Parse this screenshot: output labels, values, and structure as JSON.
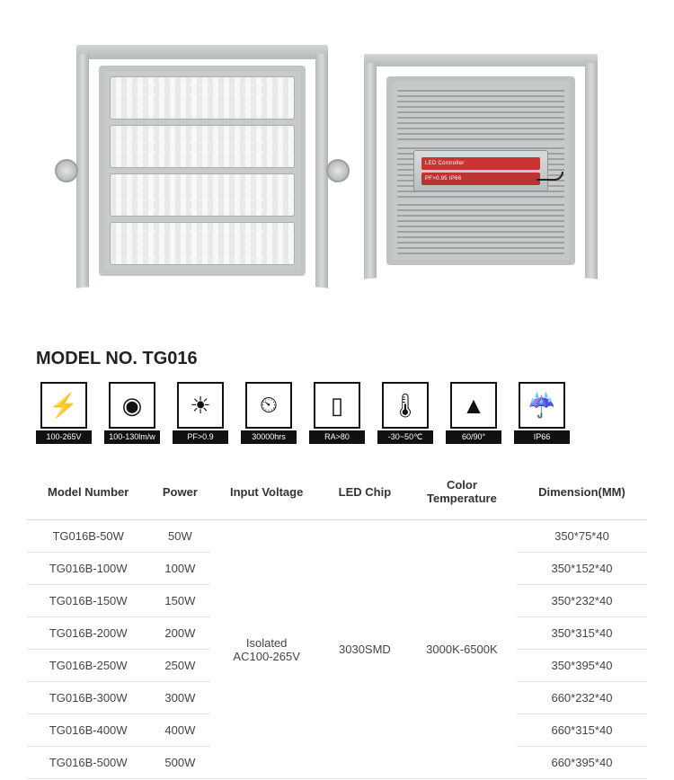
{
  "model_title": "MODEL NO. TG016",
  "driver_label_1": "LED Controller",
  "driver_label_2": "PF>0.95   IP66",
  "spec_icons": [
    {
      "symbol": "⚡",
      "caption": "100-265V"
    },
    {
      "symbol": "◉",
      "caption": "100-130lm/w"
    },
    {
      "symbol": "☀",
      "caption": "PF>0.9"
    },
    {
      "symbol": "⏲",
      "caption": "30000hrs"
    },
    {
      "symbol": "▯",
      "caption": "RA>80"
    },
    {
      "symbol": "🌡",
      "caption": "-30~50℃"
    },
    {
      "symbol": "▲",
      "caption": "60/90°"
    },
    {
      "symbol": "☔",
      "caption": "IP66"
    }
  ],
  "table": {
    "columns": [
      "Model Number",
      "Power",
      "Input Voltage",
      "LED Chip",
      "Color\nTemperature",
      "Dimension(MM)"
    ],
    "input_voltage": "Isolated\nAC100-265V",
    "led_chip": "3030SMD",
    "color_temp": "3000K-6500K",
    "rows": [
      {
        "model": "TG016B-50W",
        "power": "50W",
        "dim": "350*75*40"
      },
      {
        "model": "TG016B-100W",
        "power": "100W",
        "dim": "350*152*40"
      },
      {
        "model": "TG016B-150W",
        "power": "150W",
        "dim": "350*232*40"
      },
      {
        "model": "TG016B-200W",
        "power": "200W",
        "dim": "350*315*40"
      },
      {
        "model": "TG016B-250W",
        "power": "250W",
        "dim": "350*395*40"
      },
      {
        "model": "TG016B-300W",
        "power": "300W",
        "dim": "660*232*40"
      },
      {
        "model": "TG016B-400W",
        "power": "400W",
        "dim": "660*315*40"
      },
      {
        "model": "TG016B-500W",
        "power": "500W",
        "dim": "660*395*40"
      }
    ]
  },
  "colors": {
    "icon_bg": "#ffffff",
    "icon_border": "#111111",
    "caption_bg": "#111111",
    "caption_fg": "#ffffff",
    "table_border": "#e3e3e3",
    "text": "#333333"
  }
}
